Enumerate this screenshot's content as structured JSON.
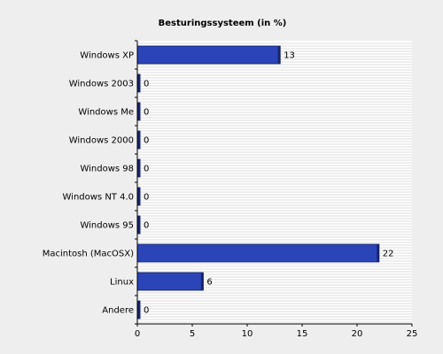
{
  "chart_data": {
    "type": "bar",
    "orientation": "horizontal",
    "title": "Besturingssysteem (in %)",
    "xlabel": "",
    "ylabel": "",
    "categories": [
      "Windows XP",
      "Windows 2003",
      "Windows Me",
      "Windows 2000",
      "Windows 98",
      "Windows NT 4.0",
      "Windows 95",
      "Macintosh (MacOSX)",
      "Linux",
      "Andere"
    ],
    "values": [
      13,
      0,
      0,
      0,
      0,
      0,
      0,
      22,
      6,
      0
    ],
    "value_labels": [
      "13",
      "0",
      "0",
      "0",
      "0",
      "0",
      "0",
      "22",
      "6",
      "0"
    ],
    "xlim": [
      0,
      25
    ],
    "x_ticks": [
      0,
      5,
      10,
      15,
      20,
      25
    ],
    "x_tick_labels": [
      "0",
      "5",
      "10",
      "15",
      "20",
      "25"
    ],
    "grid": true,
    "legend": "none",
    "colors": {
      "bar_fill": "#2b45b8",
      "bar_stroke": "#1a2a78",
      "bar_shade": "#17236a",
      "plot_background": "#ffffff",
      "grid_line": "#dddddd",
      "page_background": "#eeeeee"
    }
  }
}
